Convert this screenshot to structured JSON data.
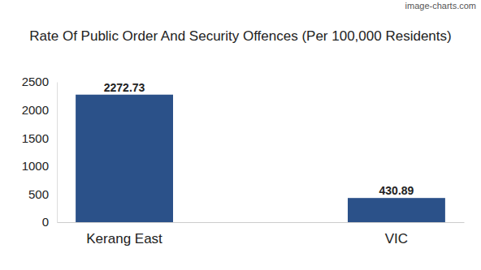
{
  "chart_data": {
    "type": "bar",
    "title": "Rate Of Public Order And Security Offences (Per 100,000 Residents)",
    "annotations": [
      "image-charts.com"
    ],
    "categories": [
      "Kerang East",
      "VIC"
    ],
    "values": [
      2272.73,
      430.89
    ],
    "color": "#2b5189",
    "ylim": [
      0,
      2500
    ],
    "yticks": [
      0,
      500,
      1000,
      1500,
      2000,
      2500
    ],
    "grid": false,
    "data_labels": true
  }
}
